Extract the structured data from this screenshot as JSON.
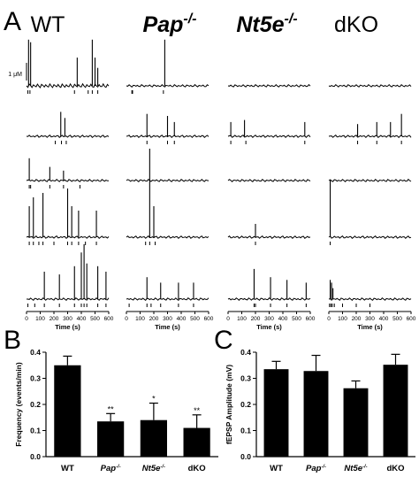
{
  "panelA": {
    "label": "A",
    "genotypes": [
      {
        "name": "WT",
        "sup": ""
      },
      {
        "name": "Pap",
        "sup": "-/-"
      },
      {
        "name": "Nt5e",
        "sup": "-/-"
      },
      {
        "name": "dKO",
        "sup": ""
      }
    ],
    "scale_label": "1 μM",
    "xlabel": "Time (s)",
    "xticks": [
      "0",
      "100",
      "200",
      "300",
      "400",
      "500",
      "600"
    ],
    "xrange": [
      0,
      600
    ],
    "traces": [
      [
        {
          "spikes": [
            [
              15,
              0.9
            ],
            [
              30,
              0.85
            ],
            [
              370,
              0.55
            ],
            [
              480,
              0.9
            ],
            [
              500,
              0.55
            ],
            [
              520,
              0.35
            ]
          ],
          "ticks": [
            10,
            25,
            350,
            450,
            480,
            520
          ],
          "noisy": true
        },
        {
          "spikes": [
            [
              250,
              0.6
            ],
            [
              280,
              0.45
            ]
          ],
          "ticks": [
            210,
            255,
            290
          ]
        },
        {
          "spikes": [
            [
              20,
              0.9
            ],
            [
              170,
              0.55
            ],
            [
              270,
              0.4
            ]
          ],
          "ticks": [
            20,
            30,
            170,
            270,
            390
          ]
        },
        {
          "spikes": [
            [
              20,
              0.35
            ],
            [
              50,
              0.45
            ],
            [
              120,
              0.5
            ],
            [
              300,
              0.55
            ],
            [
              330,
              0.35
            ],
            [
              380,
              0.3
            ],
            [
              510,
              0.3
            ]
          ],
          "ticks": [
            20,
            50,
            90,
            120,
            200,
            300,
            330,
            380,
            430,
            510
          ]
        },
        {
          "spikes": [
            [
              130,
              0.5
            ],
            [
              240,
              0.45
            ],
            [
              350,
              0.6
            ],
            [
              400,
              0.85
            ],
            [
              420,
              1.0
            ],
            [
              440,
              0.65
            ],
            [
              520,
              0.6
            ],
            [
              580,
              0.5
            ]
          ],
          "ticks": [
            10,
            60,
            130,
            240,
            350,
            400,
            420,
            440,
            520,
            580
          ]
        }
      ],
      [
        {
          "spikes": [
            [
              280,
              0.9
            ]
          ],
          "ticks": [
            40,
            45,
            270
          ]
        },
        {
          "spikes": [
            [
              150,
              0.55
            ],
            [
              300,
              0.5
            ],
            [
              350,
              0.35
            ]
          ],
          "ticks": [
            150,
            300,
            350
          ]
        },
        {
          "spikes": [],
          "ticks": []
        },
        {
          "spikes": [
            [
              170,
              1.0
            ],
            [
              200,
              0.35
            ]
          ],
          "ticks": [
            140,
            170,
            210
          ]
        },
        {
          "spikes": [
            [
              150,
              0.4
            ],
            [
              250,
              0.3
            ],
            [
              380,
              0.3
            ],
            [
              490,
              0.3
            ]
          ],
          "ticks": [
            20,
            150,
            180,
            250,
            380,
            490
          ]
        }
      ],
      [
        {
          "spikes": [],
          "ticks": []
        },
        {
          "spikes": [
            [
              20,
              0.35
            ],
            [
              120,
              0.4
            ],
            [
              560,
              0.35
            ]
          ],
          "ticks": [
            20,
            130,
            560
          ]
        },
        {
          "spikes": [],
          "ticks": []
        },
        {
          "spikes": [
            [
              200,
              0.15
            ]
          ],
          "ticks": [
            200
          ]
        },
        {
          "spikes": [
            [
              190,
              0.55
            ],
            [
              310,
              0.4
            ],
            [
              430,
              0.35
            ],
            [
              570,
              0.3
            ]
          ],
          "ticks": [
            190,
            200,
            310,
            430,
            570
          ]
        }
      ],
      [
        {
          "spikes": [],
          "ticks": []
        },
        {
          "spikes": [
            [
              210,
              0.3
            ],
            [
              350,
              0.35
            ],
            [
              450,
              0.35
            ],
            [
              530,
              0.55
            ]
          ],
          "ticks": [
            210,
            350,
            530
          ]
        },
        {
          "spikes": [],
          "ticks": []
        },
        {
          "spikes": [
            [
              10,
              0.65
            ]
          ],
          "ticks": [
            10
          ]
        },
        {
          "spikes": [
            [
              10,
              0.35
            ],
            [
              20,
              0.3
            ],
            [
              30,
              0.2
            ]
          ],
          "ticks": [
            5,
            15,
            25,
            40,
            100,
            200,
            300
          ]
        }
      ]
    ]
  },
  "chart_data": [
    {
      "panel": "B",
      "type": "bar",
      "categories": [
        {
          "name": "WT",
          "sup": ""
        },
        {
          "name": "Pap",
          "sup": "-/-"
        },
        {
          "name": "Nt5e",
          "sup": "-/-"
        },
        {
          "name": "dKO",
          "sup": ""
        }
      ],
      "values": [
        0.35,
        0.135,
        0.14,
        0.11
      ],
      "errors": [
        0.035,
        0.03,
        0.065,
        0.05
      ],
      "significance": [
        "",
        "**",
        "*",
        "**"
      ],
      "ylabel": "Frequency (events/min)",
      "ylim": [
        0,
        0.4
      ],
      "yticks": [
        "0.0",
        "0.1",
        "0.2",
        "0.3",
        "0.4"
      ]
    },
    {
      "panel": "C",
      "type": "bar",
      "categories": [
        {
          "name": "WT",
          "sup": ""
        },
        {
          "name": "Pap",
          "sup": "-/-"
        },
        {
          "name": "Nt5e",
          "sup": "-/-"
        },
        {
          "name": "dKO",
          "sup": ""
        }
      ],
      "values": [
        0.335,
        0.328,
        0.262,
        0.352
      ],
      "errors": [
        0.03,
        0.06,
        0.028,
        0.04
      ],
      "significance": [
        "",
        "",
        "",
        ""
      ],
      "ylabel": "fEPSP Amplitude (mV)",
      "ylim": [
        0,
        0.4
      ],
      "yticks": [
        "0.0",
        "0.1",
        "0.2",
        "0.3",
        "0.4"
      ]
    }
  ]
}
